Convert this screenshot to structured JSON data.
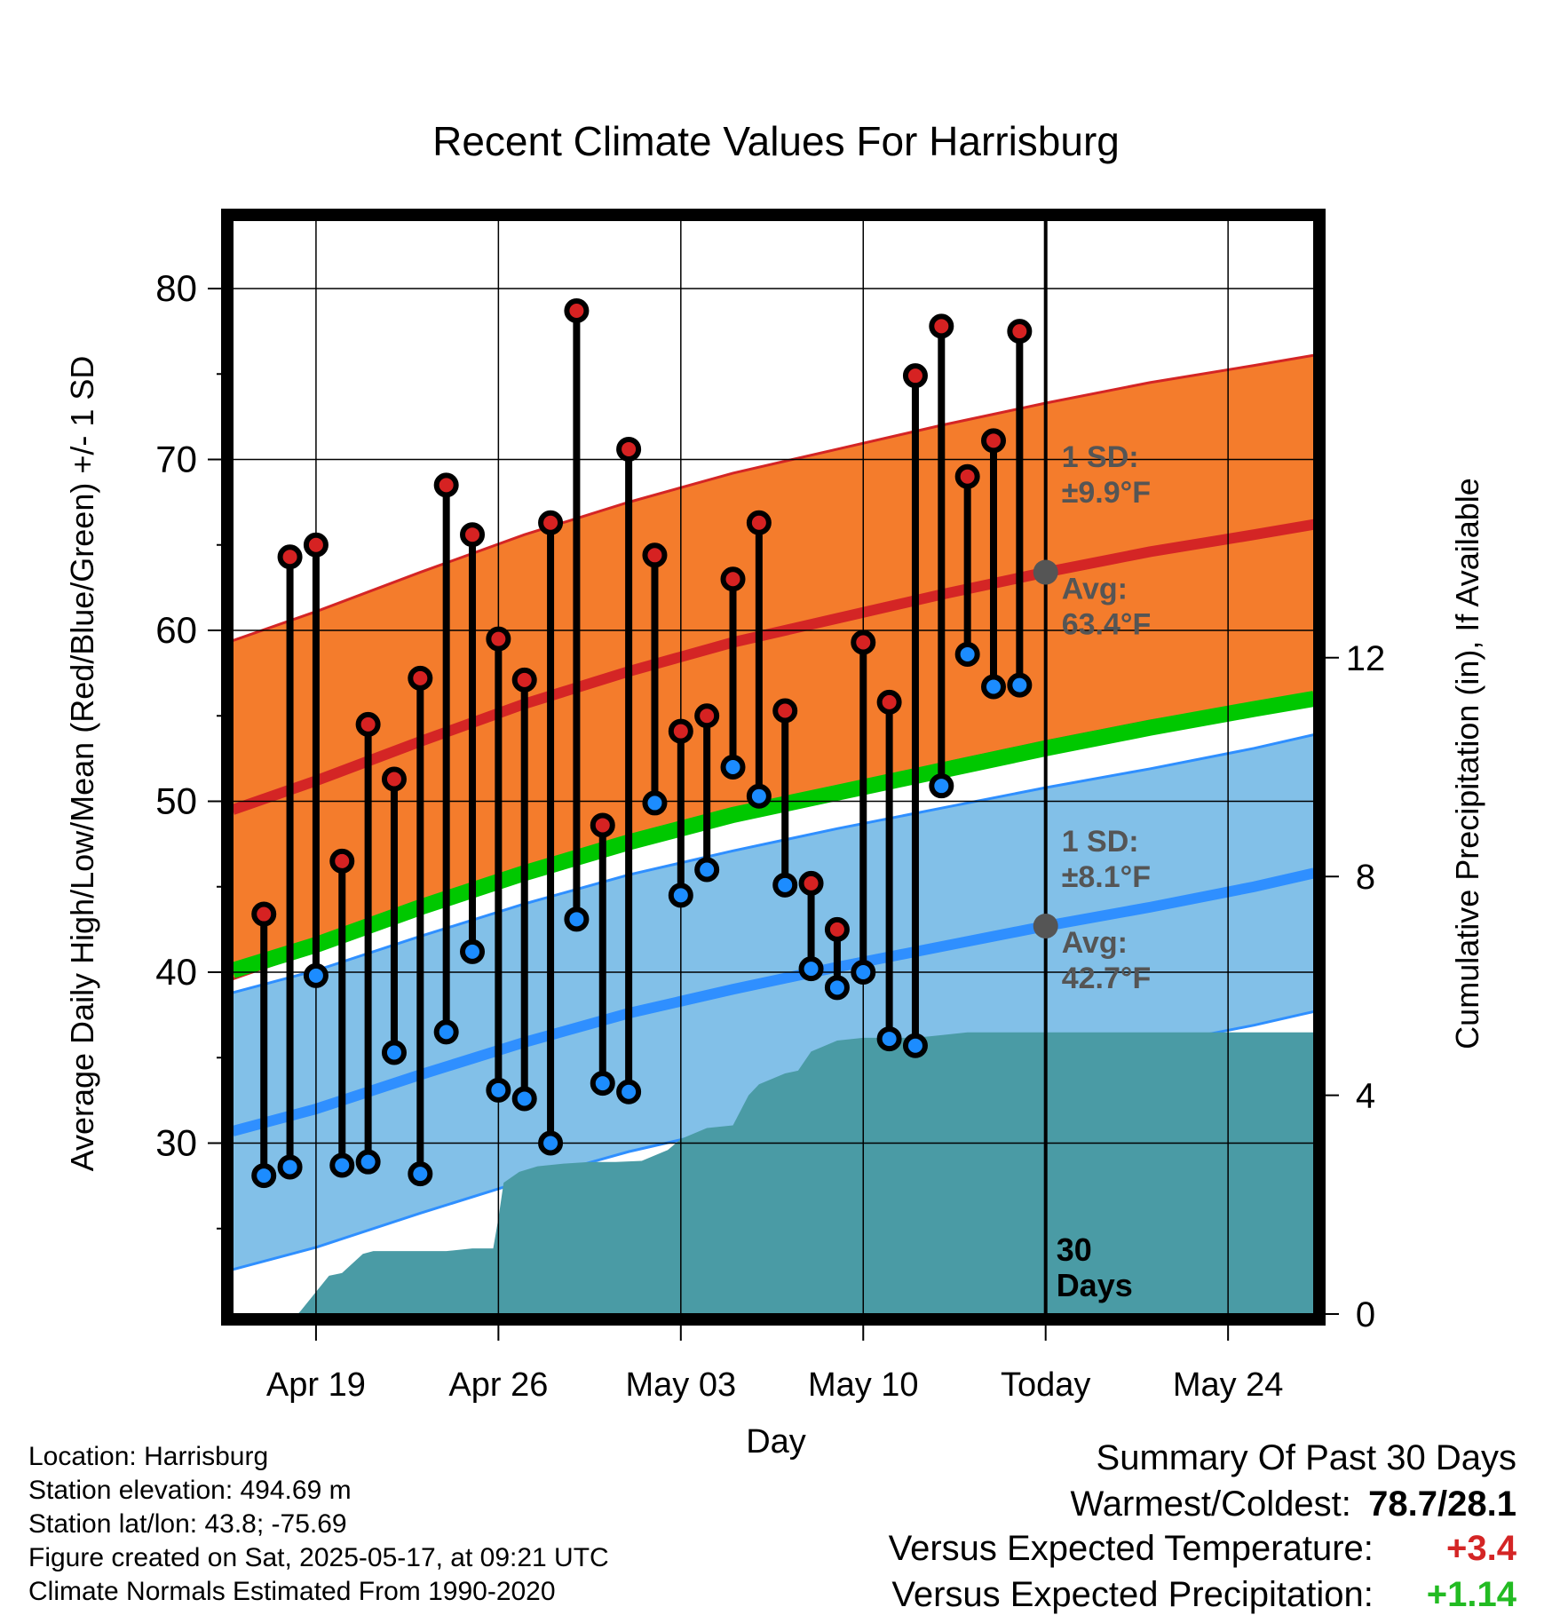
{
  "chart_data": {
    "type": "line",
    "title": "Recent Climate Values For Harrisburg",
    "xlabel": "Day",
    "ylabel": "Average Daily High/Low/Mean (Red/Blue/Green) +/- 1 SD",
    "y2label": "Cumulative Precipitation (in), If Available",
    "ylim": [
      20,
      84
    ],
    "y2lim": [
      0,
      20
    ],
    "xlim": [
      -3.2,
      38.3
    ],
    "yticks": [
      30,
      40,
      50,
      60,
      70,
      80
    ],
    "y2ticks": [
      0,
      4,
      8,
      12
    ],
    "xticks": [
      {
        "day": 0,
        "label": "Apr 19"
      },
      {
        "day": 7,
        "label": "Apr 26"
      },
      {
        "day": 14,
        "label": "May 03"
      },
      {
        "day": 21,
        "label": "May 10"
      },
      {
        "day": 28,
        "label": "Today"
      },
      {
        "day": 35,
        "label": "May 24"
      }
    ],
    "today_day": 28,
    "today_label": "30 Days",
    "grid": true,
    "daily": [
      {
        "day": -2,
        "high": 43.4,
        "low": 28.1
      },
      {
        "day": -1,
        "high": 64.3,
        "low": 28.6
      },
      {
        "day": 0,
        "high": 65.0,
        "low": 39.8
      },
      {
        "day": 1,
        "high": 46.5,
        "low": 28.7
      },
      {
        "day": 2,
        "high": 54.5,
        "low": 28.9
      },
      {
        "day": 3,
        "high": 51.3,
        "low": 35.3
      },
      {
        "day": 4,
        "high": 57.2,
        "low": 28.2
      },
      {
        "day": 5,
        "high": 68.5,
        "low": 36.5
      },
      {
        "day": 6,
        "high": 65.6,
        "low": 41.2
      },
      {
        "day": 7,
        "high": 59.5,
        "low": 33.1
      },
      {
        "day": 8,
        "high": 57.1,
        "low": 32.6
      },
      {
        "day": 9,
        "high": 66.3,
        "low": 30.0
      },
      {
        "day": 10,
        "high": 78.7,
        "low": 43.1
      },
      {
        "day": 11,
        "high": 48.6,
        "low": 33.5
      },
      {
        "day": 12,
        "high": 70.6,
        "low": 33.0
      },
      {
        "day": 13,
        "high": 64.4,
        "low": 49.9
      },
      {
        "day": 14,
        "high": 54.1,
        "low": 44.5
      },
      {
        "day": 15,
        "high": 55.0,
        "low": 46.0
      },
      {
        "day": 16,
        "high": 63.0,
        "low": 52.0
      },
      {
        "day": 17,
        "high": 66.3,
        "low": 50.3
      },
      {
        "day": 18,
        "high": 55.3,
        "low": 45.1
      },
      {
        "day": 19,
        "high": 45.2,
        "low": 40.2
      },
      {
        "day": 20,
        "high": 42.5,
        "low": 39.1
      },
      {
        "day": 21,
        "high": 59.3,
        "low": 40.0
      },
      {
        "day": 22,
        "high": 55.8,
        "low": 36.1
      },
      {
        "day": 23,
        "high": 74.9,
        "low": 35.7
      },
      {
        "day": 24,
        "high": 77.8,
        "low": 50.9
      },
      {
        "day": 25,
        "high": 69.0,
        "low": 58.6
      },
      {
        "day": 26,
        "high": 71.1,
        "low": 56.7
      },
      {
        "day": 27,
        "high": 77.5,
        "low": 56.8
      }
    ],
    "normals": {
      "days": [
        -3.2,
        0,
        4,
        8,
        12,
        16,
        20,
        24,
        28,
        32,
        36,
        38.3
      ],
      "avg_high": [
        49.5,
        51.2,
        53.5,
        55.7,
        57.6,
        59.3,
        60.7,
        62.1,
        63.4,
        64.6,
        65.6,
        66.2
      ],
      "avg_low": [
        30.7,
        32.0,
        34.0,
        35.9,
        37.6,
        39.0,
        40.3,
        41.5,
        42.7,
        43.8,
        45.0,
        45.8
      ],
      "avg_mean": [
        40.1,
        41.6,
        43.8,
        45.8,
        47.6,
        49.2,
        50.5,
        51.8,
        53.1,
        54.3,
        55.4,
        56.0
      ],
      "sd_high": 9.9,
      "sd_low": 8.1
    },
    "precip_cumulative": {
      "days": [
        -3.2,
        -0.7,
        -0.6,
        0.5,
        1.0,
        1.8,
        2.2,
        3.0,
        4.0,
        5.0,
        6.0,
        6.8,
        7.0,
        7.2,
        7.8,
        8.5,
        9.5,
        10.5,
        11.5,
        12.5,
        13.5,
        14.0,
        15.0,
        16.0,
        16.6,
        17.0,
        18.0,
        18.5,
        19.0,
        20.0,
        21.0,
        22.0,
        23.0,
        24.0,
        25.0,
        26.0,
        28.0,
        38.3
      ],
      "values": [
        0,
        0,
        0.05,
        0.7,
        0.75,
        1.1,
        1.15,
        1.15,
        1.15,
        1.15,
        1.2,
        1.2,
        1.75,
        2.4,
        2.6,
        2.7,
        2.75,
        2.78,
        2.78,
        2.8,
        3.0,
        3.2,
        3.4,
        3.45,
        4.0,
        4.2,
        4.4,
        4.45,
        4.8,
        5.0,
        5.05,
        5.05,
        5.05,
        5.1,
        5.15,
        5.15,
        5.15,
        5.15
      ]
    },
    "annotations": {
      "high_sd": [
        "1 SD:",
        "±9.9°F"
      ],
      "high_avg": [
        "Avg:",
        "63.4°F"
      ],
      "low_sd": [
        "1 SD:",
        "±8.1°F"
      ],
      "low_avg": [
        "Avg:",
        "42.7°F"
      ]
    },
    "colors": {
      "high_band": "#f47c2c",
      "high_line": "#d42525",
      "low_band": "#82c0e8",
      "low_line": "#2f8fff",
      "mean_line": "#00c800",
      "precip": "#4a9ba5",
      "high_dot": "#d62222",
      "low_dot": "#1c8cff",
      "annotation": "#555555"
    }
  },
  "info": {
    "location": "Location: Harrisburg",
    "elevation": "Station elevation: 494.69 m",
    "latlon": "Station lat/lon: 43.8; -75.69",
    "created": "Figure created on Sat, 2025-05-17, at 09:21 UTC",
    "normals": "Climate Normals Estimated From 1990-2020"
  },
  "summary": {
    "title": "Summary Of Past 30 Days",
    "warm_cold_label": "Warmest/Coldest:",
    "warm_cold_value": "78.7/28.1",
    "temp_label": "Versus Expected Temperature:",
    "temp_value": "+3.4",
    "precip_label": "Versus Expected Precipitation:",
    "precip_value": "+1.14"
  }
}
